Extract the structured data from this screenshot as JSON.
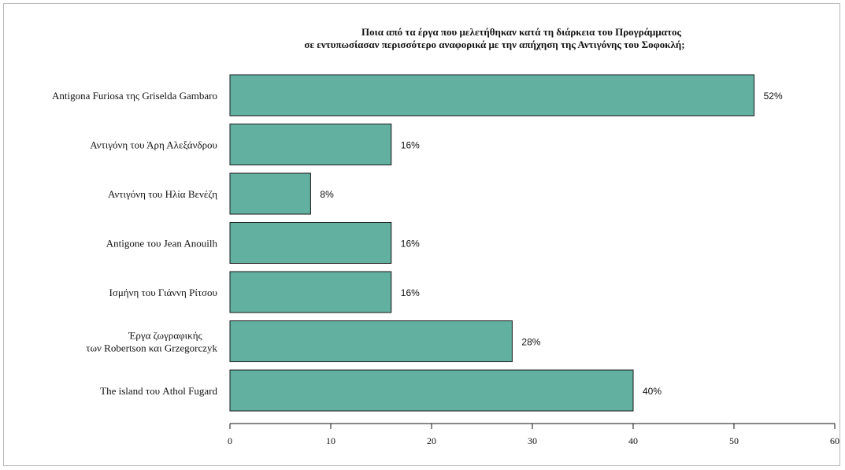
{
  "chart_data": {
    "type": "bar",
    "orientation": "horizontal",
    "title_lines": [
      "Ποια από τα έργα που μελετήθηκαν κατά τη διάρκεια του Προγράμματος",
      "σε εντυπωσίασαν περισσότερο αναφορικά με την απήχηση της Αντιγόνης του Σοφοκλή;"
    ],
    "categories": [
      [
        "Antigona Furiosa της Griselda Gambaro"
      ],
      [
        "Αντιγόνη του Άρη Αλεξάνδρου"
      ],
      [
        "Αντιγόνη του Ηλία Βενέζη"
      ],
      [
        "Antigone του Jean Anouilh"
      ],
      [
        "Ισμήνη του Γιάννη Ρίτσου"
      ],
      [
        "Έργα ζωγραφικής",
        "των Robertson και Grzegorczyk"
      ],
      [
        "The island του Athol Fugard"
      ]
    ],
    "values": [
      52,
      16,
      8,
      16,
      16,
      28,
      40
    ],
    "value_labels": [
      "52%",
      "16%",
      "8%",
      "16%",
      "16%",
      "28%",
      "40%"
    ],
    "xlim": [
      0,
      60
    ],
    "xticks": [
      0,
      10,
      20,
      30,
      40,
      50,
      60
    ],
    "bar_color": "#62b0a0",
    "grid": false
  }
}
